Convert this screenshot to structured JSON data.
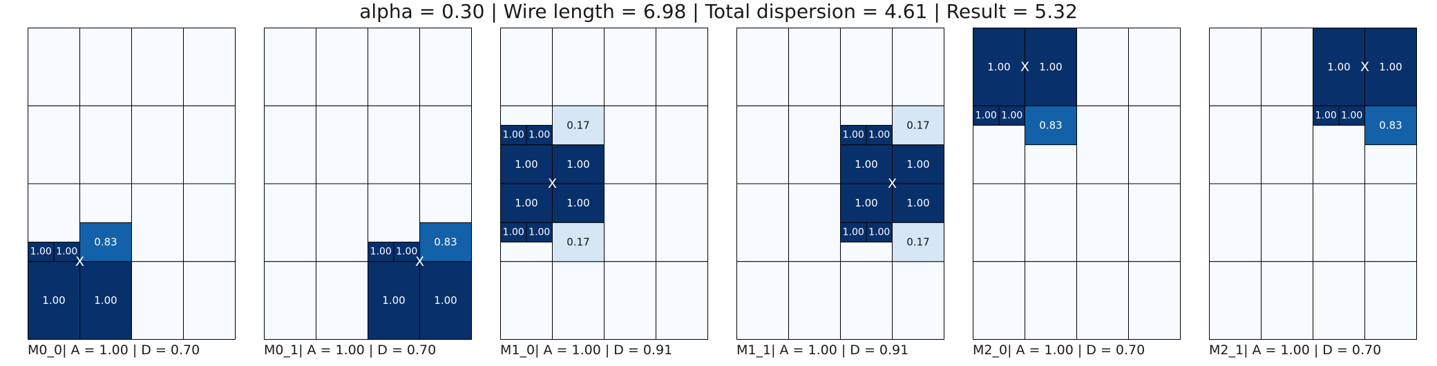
{
  "title": "alpha = 0.30 | Wire length = 6.98 | Total dispersion = 4.61 | Result = 5.32",
  "colors": {
    "empty": "#f7fbff",
    "full": "#08306b",
    "high": "#1361a9",
    "low": "#d6e6f4",
    "border": "#000000"
  },
  "panels": [
    {
      "label": "M0_0| A = 1.00 | D = 0.70",
      "marker": [
        1,
        3
      ],
      "blocks": [
        {
          "x": 0,
          "y": 3,
          "w": 1,
          "h": 1,
          "value": "1.00",
          "level": 1.0
        },
        {
          "x": 1,
          "y": 3,
          "w": 1,
          "h": 1,
          "value": "1.00",
          "level": 1.0
        },
        {
          "x": 1,
          "y": 2.5,
          "w": 1,
          "h": 0.5,
          "value": "0.83",
          "level": 0.83
        },
        {
          "x": 0,
          "y": 2.75,
          "w": 0.5,
          "h": 0.25,
          "value": "1.00",
          "level": 1.0
        },
        {
          "x": 0.5,
          "y": 2.75,
          "w": 0.5,
          "h": 0.25,
          "value": "1.00",
          "level": 1.0
        }
      ]
    },
    {
      "label": "M0_1| A = 1.00 | D = 0.70",
      "marker": [
        3,
        3
      ],
      "blocks": [
        {
          "x": 2,
          "y": 3,
          "w": 1,
          "h": 1,
          "value": "1.00",
          "level": 1.0
        },
        {
          "x": 3,
          "y": 3,
          "w": 1,
          "h": 1,
          "value": "1.00",
          "level": 1.0
        },
        {
          "x": 3,
          "y": 2.5,
          "w": 1,
          "h": 0.5,
          "value": "0.83",
          "level": 0.83
        },
        {
          "x": 2,
          "y": 2.75,
          "w": 0.5,
          "h": 0.25,
          "value": "1.00",
          "level": 1.0
        },
        {
          "x": 2.5,
          "y": 2.75,
          "w": 0.5,
          "h": 0.25,
          "value": "1.00",
          "level": 1.0
        }
      ]
    },
    {
      "label": "M1_0| A = 1.00 | D = 0.91",
      "marker": [
        1,
        2
      ],
      "blocks": [
        {
          "x": 0,
          "y": 1.5,
          "w": 1,
          "h": 0.5,
          "value": "1.00",
          "level": 1.0
        },
        {
          "x": 0,
          "y": 2,
          "w": 1,
          "h": 0.5,
          "value": "1.00",
          "level": 1.0
        },
        {
          "x": 1,
          "y": 1.5,
          "w": 1,
          "h": 0.5,
          "value": "1.00",
          "level": 1.0
        },
        {
          "x": 1,
          "y": 2,
          "w": 1,
          "h": 0.5,
          "value": "1.00",
          "level": 1.0
        },
        {
          "x": 1,
          "y": 1,
          "w": 1,
          "h": 0.5,
          "value": "0.17",
          "level": 0.17
        },
        {
          "x": 1,
          "y": 2.5,
          "w": 1,
          "h": 0.5,
          "value": "0.17",
          "level": 0.17
        },
        {
          "x": 0,
          "y": 1.25,
          "w": 0.5,
          "h": 0.25,
          "value": "1.00",
          "level": 1.0
        },
        {
          "x": 0.5,
          "y": 1.25,
          "w": 0.5,
          "h": 0.25,
          "value": "1.00",
          "level": 1.0
        },
        {
          "x": 0,
          "y": 2.5,
          "w": 0.5,
          "h": 0.25,
          "value": "1.00",
          "level": 1.0
        },
        {
          "x": 0.5,
          "y": 2.5,
          "w": 0.5,
          "h": 0.25,
          "value": "1.00",
          "level": 1.0
        }
      ]
    },
    {
      "label": "M1_1| A = 1.00 | D = 0.91",
      "marker": [
        3,
        2
      ],
      "blocks": [
        {
          "x": 2,
          "y": 1.5,
          "w": 1,
          "h": 0.5,
          "value": "1.00",
          "level": 1.0
        },
        {
          "x": 2,
          "y": 2,
          "w": 1,
          "h": 0.5,
          "value": "1.00",
          "level": 1.0
        },
        {
          "x": 3,
          "y": 1.5,
          "w": 1,
          "h": 0.5,
          "value": "1.00",
          "level": 1.0
        },
        {
          "x": 3,
          "y": 2,
          "w": 1,
          "h": 0.5,
          "value": "1.00",
          "level": 1.0
        },
        {
          "x": 3,
          "y": 1,
          "w": 1,
          "h": 0.5,
          "value": "0.17",
          "level": 0.17
        },
        {
          "x": 3,
          "y": 2.5,
          "w": 1,
          "h": 0.5,
          "value": "0.17",
          "level": 0.17
        },
        {
          "x": 2,
          "y": 1.25,
          "w": 0.5,
          "h": 0.25,
          "value": "1.00",
          "level": 1.0
        },
        {
          "x": 2.5,
          "y": 1.25,
          "w": 0.5,
          "h": 0.25,
          "value": "1.00",
          "level": 1.0
        },
        {
          "x": 2,
          "y": 2.5,
          "w": 0.5,
          "h": 0.25,
          "value": "1.00",
          "level": 1.0
        },
        {
          "x": 2.5,
          "y": 2.5,
          "w": 0.5,
          "h": 0.25,
          "value": "1.00",
          "level": 1.0
        }
      ]
    },
    {
      "label": "M2_0| A = 1.00 | D = 0.70",
      "marker": [
        1,
        0.5
      ],
      "blocks": [
        {
          "x": 0,
          "y": 0,
          "w": 1,
          "h": 1,
          "value": "1.00",
          "level": 1.0
        },
        {
          "x": 1,
          "y": 0,
          "w": 1,
          "h": 1,
          "value": "1.00",
          "level": 1.0
        },
        {
          "x": 1,
          "y": 1,
          "w": 1,
          "h": 0.5,
          "value": "0.83",
          "level": 0.83
        },
        {
          "x": 0,
          "y": 1,
          "w": 0.5,
          "h": 0.25,
          "value": "1.00",
          "level": 1.0
        },
        {
          "x": 0.5,
          "y": 1,
          "w": 0.5,
          "h": 0.25,
          "value": "1.00",
          "level": 1.0
        }
      ]
    },
    {
      "label": "M2_1| A = 1.00 | D = 0.70",
      "marker": [
        3,
        0.5
      ],
      "blocks": [
        {
          "x": 2,
          "y": 0,
          "w": 1,
          "h": 1,
          "value": "1.00",
          "level": 1.0
        },
        {
          "x": 3,
          "y": 0,
          "w": 1,
          "h": 1,
          "value": "1.00",
          "level": 1.0
        },
        {
          "x": 3,
          "y": 1,
          "w": 1,
          "h": 0.5,
          "value": "0.83",
          "level": 0.83
        },
        {
          "x": 2,
          "y": 1,
          "w": 0.5,
          "h": 0.25,
          "value": "1.00",
          "level": 1.0
        },
        {
          "x": 2.5,
          "y": 1,
          "w": 0.5,
          "h": 0.25,
          "value": "1.00",
          "level": 1.0
        }
      ]
    }
  ]
}
